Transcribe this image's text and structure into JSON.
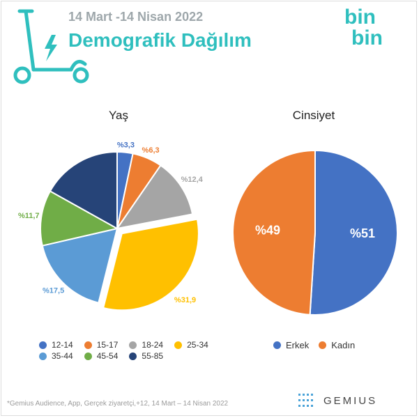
{
  "header": {
    "date_range": "14 Mart -14 Nisan 2022",
    "title": "Demografik Dağılım",
    "logo_line1": "bin",
    "logo_line2": "bin",
    "brand_color": "#2fbfbe"
  },
  "chart_data": [
    {
      "type": "pie",
      "title": "Yaş",
      "categories": [
        "12-14",
        "15-17",
        "18-24",
        "25-34",
        "35-44",
        "45-54",
        "55-85"
      ],
      "values": [
        3.3,
        6.3,
        12.4,
        31.9,
        17.5,
        11.7,
        16.9
      ],
      "data_labels": [
        "%3,3",
        "%6,3",
        "%12,4",
        "%31,9",
        "%17,5",
        "%11,7",
        ""
      ],
      "colors": [
        "#4472c4",
        "#ed7d31",
        "#a5a5a5",
        "#ffc000",
        "#5b9bd5",
        "#70ad47",
        "#264478"
      ],
      "exploded": "25-34",
      "legend_position": "bottom"
    },
    {
      "type": "pie",
      "title": "Cinsiyet",
      "categories": [
        "Erkek",
        "Kadın"
      ],
      "values": [
        51,
        49
      ],
      "data_labels": [
        "%51",
        "%49"
      ],
      "colors": [
        "#4472c4",
        "#ed7d31"
      ],
      "legend_position": "bottom"
    }
  ],
  "footer": {
    "footnote": "*Gemius Audience, App, Gerçek ziyaretçi,+12, 14 Mart – 14 Nisan 2022",
    "brand": "GEMIUS",
    "icons": [
      "scooter-icon",
      "gemius-logo-icon"
    ]
  }
}
